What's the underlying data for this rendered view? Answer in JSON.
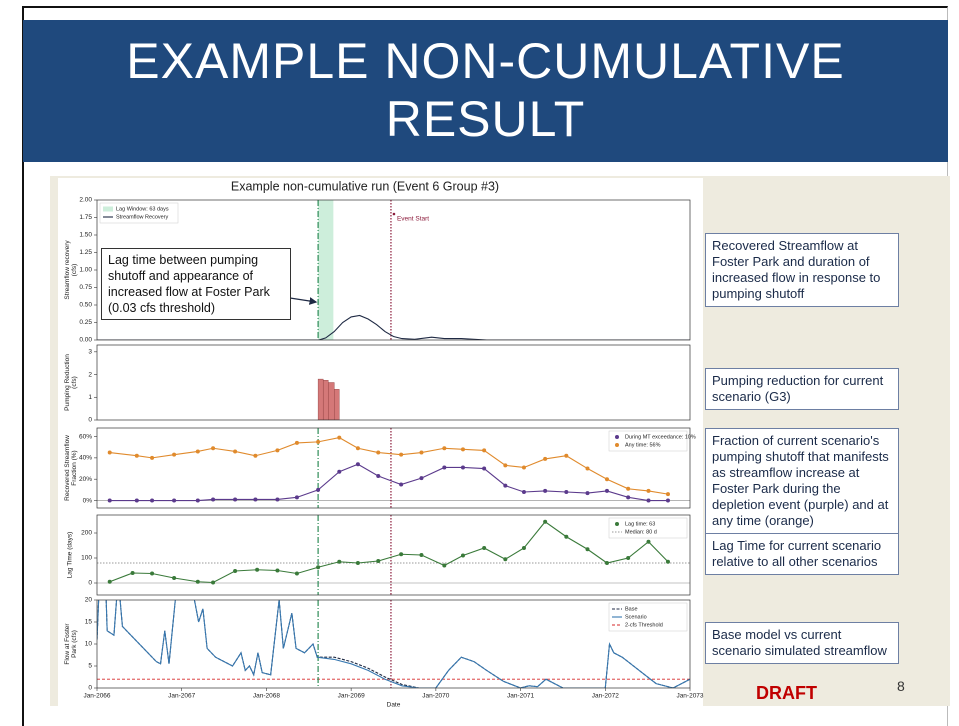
{
  "slide": {
    "title": [
      "EXAMPLE NON-CUMULATIVE",
      "RESULT"
    ],
    "figure_title": "Example non-cumulative run (Event 6 Group #3)",
    "lag_note": "Lag time between pumping shutoff and appearance of increased flow at Foster Park (0.03 cfs threshold)",
    "callouts": [
      "Recovered Streamflow at Foster Park and duration of increased flow in response to pumping shutoff",
      "Pumping reduction for current scenario (G3)",
      "Fraction of current scenario's pumping shutoff that manifests as streamflow increase at Foster Park during the depletion event (purple) and at any time (orange)",
      "Lag Time for current scenario relative to all other scenarios",
      "Base model vs current scenario simulated streamflow"
    ],
    "draft": "DRAFT",
    "page_number": "8"
  },
  "chart_data": [
    {
      "type": "line",
      "ylabel": "Streamflow recovery (cfs)",
      "xlim": [
        2066,
        2073
      ],
      "ylim": [
        0,
        2
      ],
      "yticks": [
        {
          "value": 0,
          "label": "0.00"
        },
        {
          "value": 0.25,
          "label": "0.25"
        },
        {
          "value": 0.5,
          "label": "0.50"
        },
        {
          "value": 0.75,
          "label": "0.75"
        },
        {
          "value": 1,
          "label": "1.00"
        },
        {
          "value": 1.25,
          "label": "1.25"
        },
        {
          "value": 1.5,
          "label": "1.50"
        },
        {
          "value": 1.75,
          "label": "1.75"
        },
        {
          "value": 2,
          "label": "2.00"
        }
      ],
      "legend": "upper left",
      "lag_window": {
        "name": "Lag Window: 63 days",
        "range": [
          2068.61,
          2068.79
        ],
        "color": "#cdeedb"
      },
      "lag_start": 2068.61,
      "event_start": 2069.47,
      "annotation": "Event Start",
      "series": [
        {
          "name": "Streamflow Recovery",
          "color": "#1f2a44",
          "x": [
            2066,
            2068.62,
            2068.7,
            2068.8,
            2068.9,
            2069.0,
            2069.1,
            2069.2,
            2069.3,
            2069.4,
            2069.5,
            2069.6,
            2069.75,
            2069.95,
            2070.1,
            2070.3,
            2070.6,
            2073
          ],
          "values": [
            0,
            0,
            0.03,
            0.12,
            0.25,
            0.33,
            0.35,
            0.3,
            0.22,
            0.12,
            0.05,
            0.02,
            0.01,
            0.04,
            0.02,
            0.02,
            0,
            0
          ]
        }
      ]
    },
    {
      "type": "histogram",
      "ylabel": "Pumping Reduction (cfs)",
      "xlim": [
        2066,
        2073
      ],
      "ylim": [
        0,
        3.3
      ],
      "yticks": [
        0,
        1,
        2,
        3
      ],
      "color": "#d47878",
      "bins": [
        2068.61,
        2068.67,
        2068.73,
        2068.8,
        2068.86
      ],
      "values": [
        1.8,
        1.75,
        1.65,
        1.35
      ]
    },
    {
      "type": "line",
      "ylabel": "Recovered Streamflow Fraction (%)",
      "xlim": [
        2066,
        2073
      ],
      "ylim": [
        -7,
        68
      ],
      "yticks": [
        {
          "value": 0,
          "label": "0%"
        },
        {
          "value": 20,
          "label": "20%"
        },
        {
          "value": 40,
          "label": "40%"
        },
        {
          "value": 60,
          "label": "60%"
        }
      ],
      "legend": "upper right",
      "lag_start": 2068.61,
      "event_start": 2069.47,
      "baseline": 0,
      "series": [
        {
          "name": "During MT exceedance: 10%",
          "color": "#5b3a8c",
          "marker": true,
          "x": [
            2066.15,
            2066.47,
            2066.65,
            2066.91,
            2067.19,
            2067.37,
            2067.63,
            2067.87,
            2068.13,
            2068.36,
            2068.61,
            2068.86,
            2069.08,
            2069.32,
            2069.59,
            2069.83,
            2070.1,
            2070.32,
            2070.57,
            2070.82,
            2071.04,
            2071.29,
            2071.54,
            2071.79,
            2072.02,
            2072.27,
            2072.51,
            2072.74
          ],
          "values": [
            0,
            0,
            0,
            0,
            0,
            1,
            1,
            1,
            1,
            3,
            10,
            27,
            34,
            23,
            15,
            21,
            31,
            31,
            30,
            14,
            8,
            9,
            8,
            7,
            9,
            3,
            0,
            0
          ]
        },
        {
          "name": "Any time: 56%",
          "color": "#e08a2c",
          "marker": true,
          "x": [
            2066.15,
            2066.47,
            2066.65,
            2066.91,
            2067.19,
            2067.37,
            2067.63,
            2067.87,
            2068.13,
            2068.36,
            2068.61,
            2068.86,
            2069.08,
            2069.32,
            2069.59,
            2069.83,
            2070.1,
            2070.32,
            2070.57,
            2070.82,
            2071.04,
            2071.29,
            2071.54,
            2071.79,
            2072.02,
            2072.27,
            2072.51,
            2072.74
          ],
          "values": [
            45,
            42,
            40,
            43,
            46,
            49,
            46,
            42,
            47,
            54,
            55,
            59,
            49,
            45,
            43,
            45,
            49,
            48,
            47,
            33,
            31,
            39,
            42,
            30,
            20,
            11,
            9,
            6
          ]
        }
      ]
    },
    {
      "type": "line",
      "ylabel": "Lag Time (days)",
      "xlim": [
        2066,
        2073
      ],
      "ylim": [
        -48,
        272
      ],
      "yticks": [
        0,
        100,
        200
      ],
      "legend": "upper right",
      "lag_start": 2068.61,
      "event_start": 2069.47,
      "baseline": 0,
      "hlines": [
        {
          "name": "Median: 80 d",
          "value": 80,
          "color": "#999999",
          "dash": "1.5,1.5"
        }
      ],
      "series": [
        {
          "name": "Lag time: 63",
          "color": "#3a7a3a",
          "marker": true,
          "x": [
            2066.15,
            2066.42,
            2066.65,
            2066.91,
            2067.19,
            2067.37,
            2067.63,
            2067.89,
            2068.13,
            2068.36,
            2068.61,
            2068.86,
            2069.08,
            2069.32,
            2069.59,
            2069.83,
            2070.1,
            2070.32,
            2070.57,
            2070.82,
            2071.04,
            2071.29,
            2071.54,
            2071.79,
            2072.02,
            2072.27,
            2072.51,
            2072.74
          ],
          "values": [
            5,
            40,
            38,
            20,
            5,
            2,
            48,
            53,
            50,
            38,
            63,
            85,
            80,
            88,
            115,
            112,
            70,
            110,
            140,
            95,
            140,
            245,
            185,
            135,
            80,
            100,
            165,
            85
          ]
        }
      ]
    },
    {
      "type": "line",
      "ylabel": "Flow at Foster Park (cfs)",
      "xlabel": "Date",
      "xlim": [
        2066,
        2073
      ],
      "ylim": [
        0,
        20
      ],
      "yticks": [
        0,
        5,
        10,
        15,
        20
      ],
      "xticks": [
        {
          "value": 2066,
          "label": "Jan-2066"
        },
        {
          "value": 2067,
          "label": "Jan-2067"
        },
        {
          "value": 2068,
          "label": "Jan-2068"
        },
        {
          "value": 2069,
          "label": "Jan-2069"
        },
        {
          "value": 2070,
          "label": "Jan-2070"
        },
        {
          "value": 2071,
          "label": "Jan-2071"
        },
        {
          "value": 2072,
          "label": "Jan-2072"
        },
        {
          "value": 2073,
          "label": "Jan-2073"
        }
      ],
      "legend": "upper right",
      "lag_start": 2068.61,
      "event_start": 2069.47,
      "hlines": [
        {
          "name": "2-cfs Threshold",
          "value": 2,
          "color": "#d62728",
          "dash": "3,2"
        }
      ],
      "series": [
        {
          "name": "Base",
          "color": "#1f2a44",
          "dash": "3,1.5",
          "x": [
            2066,
            2066.03,
            2066.1,
            2066.12,
            2066.2,
            2066.25,
            2066.3,
            2066.4,
            2066.5,
            2066.6,
            2066.7,
            2066.75,
            2066.8,
            2066.85,
            2066.95,
            2067.1,
            2067.2,
            2067.25,
            2067.3,
            2067.4,
            2067.5,
            2067.6,
            2067.7,
            2067.75,
            2067.8,
            2067.85,
            2067.9,
            2067.95,
            2068.05,
            2068.15,
            2068.2,
            2068.3,
            2068.35,
            2068.45,
            2068.55,
            2068.6,
            2068.8,
            2069.0,
            2069.2,
            2069.4,
            2069.6,
            2069.8,
            2070.0,
            2070.15,
            2070.3,
            2070.45,
            2070.6,
            2070.8,
            2071.0,
            2071.1,
            2071.2,
            2071.3,
            2071.5,
            2072.0,
            2072.05,
            2072.1,
            2072.2,
            2072.4,
            2072.6,
            2072.8,
            2073
          ],
          "values": [
            11,
            25,
            25,
            13,
            12,
            25,
            14,
            12,
            10,
            8,
            6,
            5.5,
            13,
            5.5,
            25,
            25,
            15,
            18,
            9,
            7,
            6,
            5,
            8,
            4,
            5,
            3,
            8,
            3.5,
            3,
            20,
            9,
            17,
            9,
            8,
            10,
            7,
            7,
            6,
            4.5,
            2.5,
            0.8,
            0,
            0,
            4,
            7,
            6,
            4,
            1.5,
            0,
            0.5,
            0.3,
            2,
            0,
            0,
            10,
            8,
            7,
            4,
            1,
            0,
            2
          ]
        },
        {
          "name": "Scenario",
          "color": "#3778b0",
          "x": [
            2066,
            2066.03,
            2066.1,
            2066.12,
            2066.2,
            2066.25,
            2066.3,
            2066.4,
            2066.5,
            2066.6,
            2066.7,
            2066.75,
            2066.8,
            2066.85,
            2066.95,
            2067.1,
            2067.2,
            2067.25,
            2067.3,
            2067.4,
            2067.5,
            2067.6,
            2067.7,
            2067.75,
            2067.8,
            2067.85,
            2067.9,
            2067.95,
            2068.05,
            2068.15,
            2068.2,
            2068.3,
            2068.35,
            2068.45,
            2068.55,
            2068.6,
            2068.8,
            2069.0,
            2069.2,
            2069.4,
            2069.6,
            2069.8,
            2070.0,
            2070.15,
            2070.3,
            2070.45,
            2070.6,
            2070.8,
            2071.0,
            2071.1,
            2071.2,
            2071.3,
            2071.5,
            2072.0,
            2072.05,
            2072.1,
            2072.2,
            2072.4,
            2072.6,
            2072.8,
            2073
          ],
          "values": [
            11,
            25,
            25,
            13,
            12,
            25,
            14,
            12,
            10,
            8,
            6,
            5.5,
            13,
            5.5,
            25,
            25,
            15,
            18,
            9,
            7,
            6,
            5,
            8,
            4,
            5,
            3,
            8,
            3.5,
            3,
            20,
            9,
            17,
            9,
            8,
            10,
            7,
            6.5,
            5.5,
            4,
            2,
            0.5,
            0,
            0,
            4,
            7,
            6,
            4,
            1.5,
            0,
            0.5,
            0.3,
            2,
            0,
            0,
            10,
            8,
            7,
            4,
            1,
            0,
            2
          ]
        }
      ]
    }
  ]
}
